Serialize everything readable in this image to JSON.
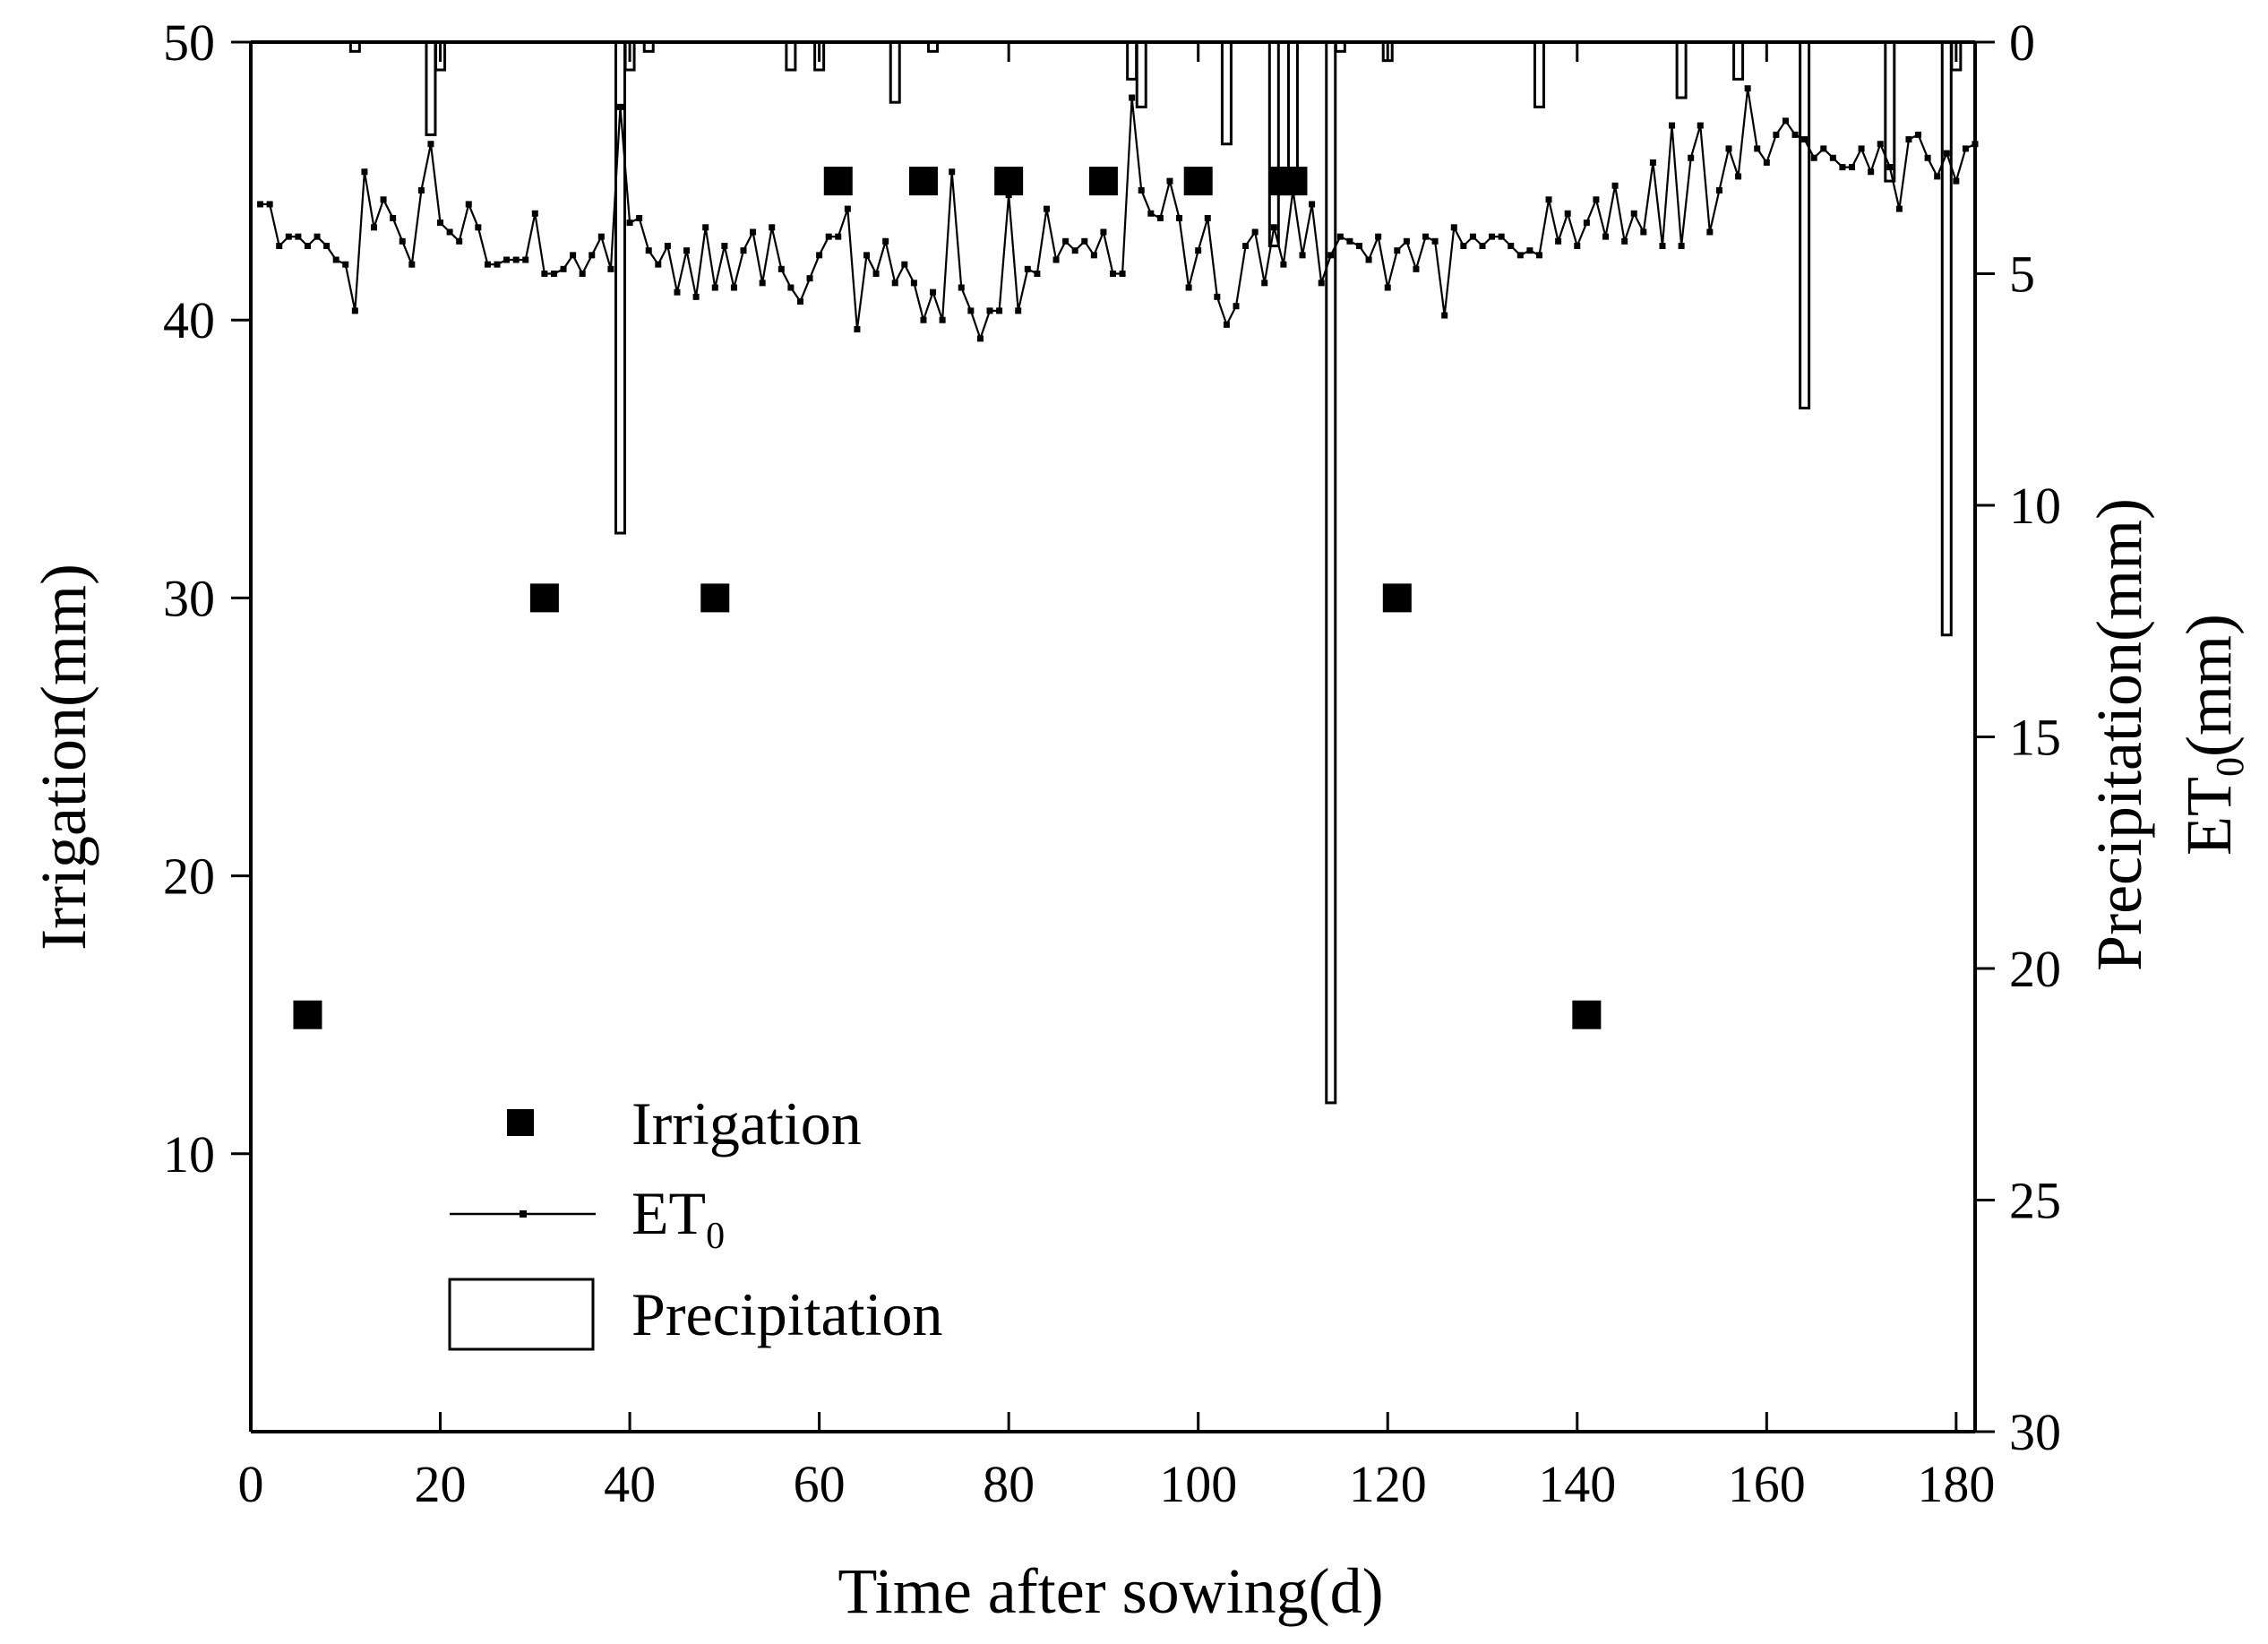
{
  "chart_data": {
    "type": "bar",
    "xlabel": "Time after sowing(d)",
    "ylabel_left": "Irrigation(mm)",
    "ylabel_right_line1": "Precipitation(mm)",
    "ylabel_right_line2_base": "ET",
    "ylabel_right_line2_sub": "0",
    "ylabel_right_line2_unit": "(mm)",
    "xlim": [
      0,
      182
    ],
    "x_ticks": [
      0,
      20,
      40,
      60,
      80,
      100,
      120,
      140,
      160,
      180
    ],
    "ylim_left": [
      0,
      50
    ],
    "left_ticks": [
      10,
      20,
      30,
      40,
      50
    ],
    "ylim_right": [
      0,
      30
    ],
    "right_ticks": [
      0,
      5,
      10,
      15,
      20,
      25,
      30
    ],
    "right_axis_inverted": true,
    "grid": false,
    "legend_position": "lower-left",
    "legend": {
      "irrigation": "Irrigation",
      "et0_base": "ET",
      "et0_sub": "0",
      "precipitation": "Precipitation"
    },
    "irrigation": [
      {
        "x": 6,
        "y": 15
      },
      {
        "x": 31,
        "y": 30
      },
      {
        "x": 49,
        "y": 30
      },
      {
        "x": 62,
        "y": 45
      },
      {
        "x": 71,
        "y": 45
      },
      {
        "x": 80,
        "y": 45
      },
      {
        "x": 90,
        "y": 45
      },
      {
        "x": 100,
        "y": 45
      },
      {
        "x": 109,
        "y": 45
      },
      {
        "x": 110,
        "y": 45
      },
      {
        "x": 121,
        "y": 30
      },
      {
        "x": 141,
        "y": 15
      }
    ],
    "precipitation": [
      {
        "x": 11,
        "mm": 0.2
      },
      {
        "x": 19,
        "mm": 2.0
      },
      {
        "x": 20,
        "mm": 0.6
      },
      {
        "x": 39,
        "mm": 10.6
      },
      {
        "x": 40,
        "mm": 0.6
      },
      {
        "x": 42,
        "mm": 0.2
      },
      {
        "x": 57,
        "mm": 0.6
      },
      {
        "x": 60,
        "mm": 0.6
      },
      {
        "x": 68,
        "mm": 1.3
      },
      {
        "x": 72,
        "mm": 0.2
      },
      {
        "x": 93,
        "mm": 0.8
      },
      {
        "x": 94,
        "mm": 1.4
      },
      {
        "x": 103,
        "mm": 2.2
      },
      {
        "x": 108,
        "mm": 4.4
      },
      {
        "x": 110,
        "mm": 3.2
      },
      {
        "x": 114,
        "mm": 22.9
      },
      {
        "x": 115,
        "mm": 0.2
      },
      {
        "x": 120,
        "mm": 0.4
      },
      {
        "x": 136,
        "mm": 1.4
      },
      {
        "x": 151,
        "mm": 1.2
      },
      {
        "x": 157,
        "mm": 0.8
      },
      {
        "x": 164,
        "mm": 7.9
      },
      {
        "x": 173,
        "mm": 3.0
      },
      {
        "x": 179,
        "mm": 12.8
      },
      {
        "x": 180,
        "mm": 0.6
      }
    ],
    "et0": [
      3.5,
      3.5,
      4.4,
      4.2,
      4.2,
      4.4,
      4.2,
      4.4,
      4.7,
      4.8,
      5.8,
      2.8,
      4.0,
      3.4,
      3.8,
      4.3,
      4.8,
      3.2,
      2.2,
      3.9,
      4.1,
      4.3,
      3.5,
      4.0,
      4.8,
      4.8,
      4.7,
      4.7,
      4.7,
      3.7,
      5.0,
      5.0,
      4.9,
      4.6,
      5.0,
      4.6,
      4.2,
      4.9,
      1.4,
      3.9,
      3.8,
      4.5,
      4.8,
      4.4,
      5.4,
      4.5,
      5.5,
      4.0,
      5.3,
      4.4,
      5.3,
      4.5,
      4.1,
      5.2,
      4.0,
      4.9,
      5.3,
      5.6,
      5.1,
      4.6,
      4.2,
      4.2,
      3.6,
      6.2,
      4.6,
      5.0,
      4.3,
      5.2,
      4.8,
      5.2,
      6.0,
      5.4,
      6.0,
      2.8,
      5.3,
      5.8,
      6.4,
      5.8,
      5.8,
      3.3,
      5.8,
      4.9,
      5.0,
      3.6,
      4.7,
      4.3,
      4.5,
      4.3,
      4.6,
      4.1,
      5.0,
      5.0,
      1.2,
      3.2,
      3.7,
      3.8,
      3.0,
      3.8,
      5.3,
      4.5,
      3.8,
      5.5,
      6.1,
      5.7,
      4.4,
      4.1,
      5.2,
      4.0,
      4.8,
      3.2,
      4.6,
      3.5,
      5.2,
      4.6,
      4.2,
      4.3,
      4.4,
      4.7,
      4.2,
      5.3,
      4.5,
      4.3,
      4.9,
      4.2,
      4.3,
      5.9,
      4.0,
      4.4,
      4.2,
      4.4,
      4.2,
      4.2,
      4.4,
      4.6,
      4.5,
      4.6,
      3.4,
      4.3,
      3.7,
      4.4,
      3.9,
      3.4,
      4.2,
      3.1,
      4.3,
      3.7,
      4.1,
      2.6,
      4.4,
      1.8,
      4.4,
      2.5,
      1.8,
      4.1,
      3.2,
      2.3,
      2.9,
      1.0,
      2.3,
      2.6,
      2.0,
      1.7,
      2.0,
      2.1,
      2.5,
      2.3,
      2.5,
      2.7,
      2.7,
      2.3,
      2.8,
      2.2,
      2.7,
      3.6,
      2.1,
      2.0,
      2.5,
      2.9,
      2.4,
      3.0,
      2.3,
      2.2
    ]
  }
}
